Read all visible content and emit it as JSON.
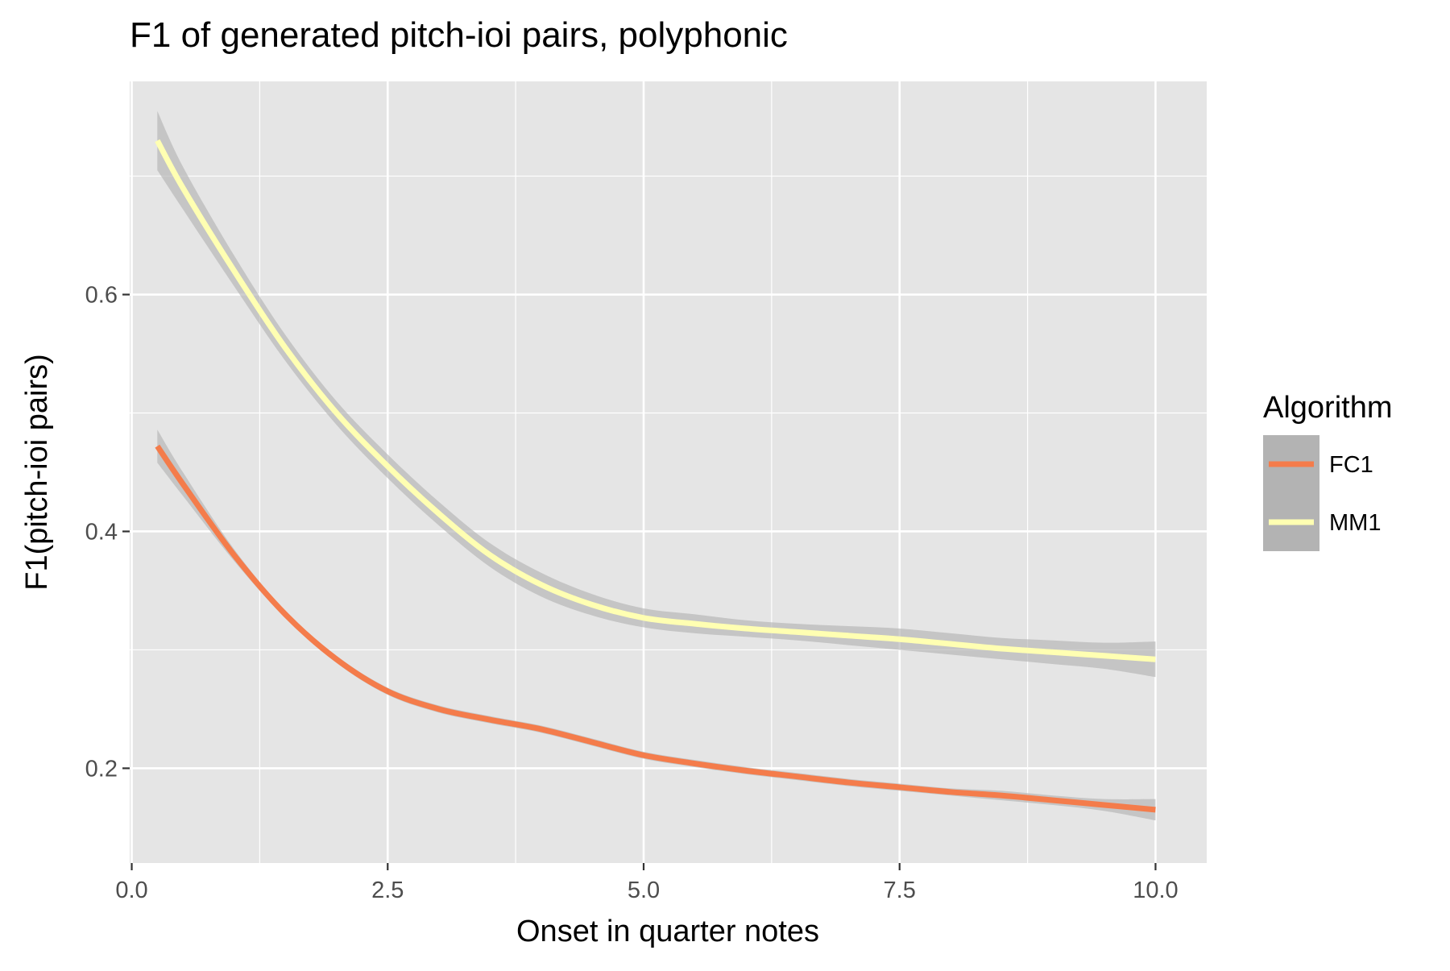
{
  "chart_data": {
    "type": "line",
    "title": "F1 of generated pitch-ioi pairs, polyphonic",
    "xlabel": "Onset in quarter notes",
    "ylabel": "F1(pitch-ioi pairs)",
    "xlim": [
      -0.02,
      10.5
    ],
    "ylim": [
      0.12,
      0.78
    ],
    "x_ticks": [
      0.0,
      2.5,
      5.0,
      7.5,
      10.0
    ],
    "x_tick_labels": [
      "0.0",
      "2.5",
      "5.0",
      "7.5",
      "10.0"
    ],
    "y_ticks": [
      0.2,
      0.4,
      0.6
    ],
    "y_tick_labels": [
      "0.2",
      "0.4",
      "0.6"
    ],
    "x_minor_ticks": [
      1.25,
      3.75,
      6.25,
      8.75
    ],
    "y_minor_ticks": [
      0.3,
      0.5,
      0.7
    ],
    "grid": true,
    "legend": {
      "title": "Algorithm",
      "position": "right"
    },
    "confidence_band": true,
    "colors": {
      "panel_background": "#e5e5e5",
      "grid": "#ffffff",
      "band": "#b3b3b3",
      "tick_mark": "#333333"
    },
    "series": [
      {
        "name": "FC1",
        "color": "#f47c4b",
        "x": [
          0.25,
          0.5,
          1.0,
          1.5,
          2.0,
          2.5,
          3.0,
          3.5,
          4.0,
          4.5,
          5.0,
          5.5,
          6.0,
          6.5,
          7.0,
          7.5,
          8.0,
          8.5,
          9.0,
          9.5,
          10.0
        ],
        "y": [
          0.472,
          0.44,
          0.38,
          0.33,
          0.292,
          0.265,
          0.25,
          0.241,
          0.233,
          0.222,
          0.211,
          0.204,
          0.198,
          0.193,
          0.188,
          0.184,
          0.18,
          0.177,
          0.173,
          0.169,
          0.165
        ],
        "ci_low": [
          0.458,
          0.43,
          0.375,
          0.327,
          0.289,
          0.262,
          0.247,
          0.238,
          0.23,
          0.219,
          0.208,
          0.201,
          0.195,
          0.19,
          0.185,
          0.181,
          0.177,
          0.173,
          0.169,
          0.164,
          0.156
        ],
        "ci_high": [
          0.486,
          0.45,
          0.385,
          0.333,
          0.295,
          0.268,
          0.253,
          0.244,
          0.236,
          0.225,
          0.214,
          0.207,
          0.201,
          0.196,
          0.191,
          0.187,
          0.183,
          0.181,
          0.177,
          0.174,
          0.174
        ]
      },
      {
        "name": "MM1",
        "color": "#ffffb2",
        "x": [
          0.25,
          0.5,
          1.0,
          1.5,
          2.0,
          2.5,
          3.0,
          3.5,
          4.0,
          4.5,
          5.0,
          5.5,
          6.0,
          6.5,
          7.0,
          7.5,
          8.0,
          8.5,
          9.0,
          9.5,
          10.0
        ],
        "y": [
          0.73,
          0.69,
          0.62,
          0.555,
          0.5,
          0.455,
          0.415,
          0.38,
          0.355,
          0.338,
          0.327,
          0.322,
          0.318,
          0.315,
          0.312,
          0.309,
          0.305,
          0.301,
          0.298,
          0.295,
          0.292
        ],
        "ci_low": [
          0.705,
          0.672,
          0.607,
          0.544,
          0.49,
          0.445,
          0.405,
          0.37,
          0.345,
          0.329,
          0.319,
          0.314,
          0.311,
          0.308,
          0.304,
          0.3,
          0.296,
          0.292,
          0.288,
          0.284,
          0.277
        ],
        "ci_high": [
          0.755,
          0.708,
          0.633,
          0.566,
          0.51,
          0.465,
          0.425,
          0.39,
          0.365,
          0.347,
          0.335,
          0.33,
          0.325,
          0.322,
          0.32,
          0.318,
          0.314,
          0.31,
          0.308,
          0.306,
          0.307
        ]
      }
    ]
  }
}
